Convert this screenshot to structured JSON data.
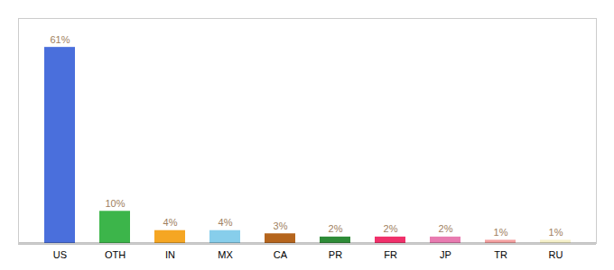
{
  "chart_data": {
    "type": "bar",
    "categories": [
      "US",
      "OTH",
      "IN",
      "MX",
      "CA",
      "PR",
      "FR",
      "JP",
      "TR",
      "RU"
    ],
    "values": [
      61,
      10,
      4,
      4,
      3,
      2,
      2,
      2,
      1,
      1
    ],
    "value_labels": [
      "61%",
      "10%",
      "4%",
      "4%",
      "3%",
      "2%",
      "2%",
      "2%",
      "1%",
      "1%"
    ],
    "colors": [
      "#4a6fdc",
      "#3cb54a",
      "#f5a623",
      "#87ceeb",
      "#b5651d",
      "#2e8b37",
      "#f0306a",
      "#e87bb0",
      "#f4a0a0",
      "#f5f0c8"
    ],
    "ylim": [
      0,
      70
    ],
    "data_labels": true,
    "tick_labels": "x"
  }
}
